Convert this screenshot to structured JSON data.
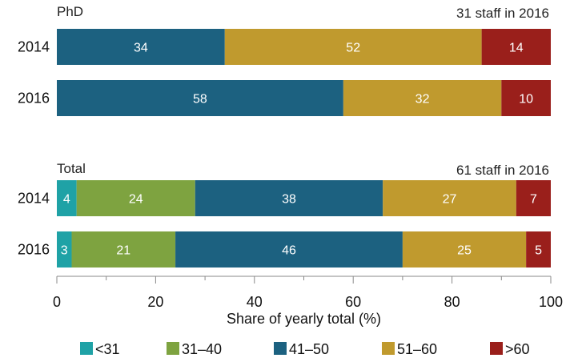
{
  "chart_data": {
    "type": "bar",
    "orientation": "horizontal",
    "stacked": true,
    "xlabel": "Share of yearly total (%)",
    "xlim": [
      0,
      100
    ],
    "xticks": [
      0,
      20,
      40,
      60,
      80,
      100
    ],
    "grid": false,
    "legend_position": "bottom",
    "series": [
      {
        "name": "<31",
        "color": "#1fa2a6"
      },
      {
        "name": "31–40",
        "color": "#7ea340"
      },
      {
        "name": "41–50",
        "color": "#1c6180"
      },
      {
        "name": "51–60",
        "color": "#c09a2e"
      },
      {
        "name": ">60",
        "color": "#9a1f1b"
      }
    ],
    "panels": [
      {
        "title": "PhD",
        "note": "31 staff in 2016",
        "categories": [
          "2014",
          "2016"
        ],
        "values": [
          [
            0,
            0,
            34,
            52,
            14
          ],
          [
            0,
            0,
            58,
            32,
            10
          ]
        ]
      },
      {
        "title": "Total",
        "note": "61 staff in 2016",
        "categories": [
          "2014",
          "2016"
        ],
        "values": [
          [
            4,
            24,
            38,
            27,
            7
          ],
          [
            3,
            21,
            46,
            25,
            5
          ]
        ]
      }
    ]
  }
}
